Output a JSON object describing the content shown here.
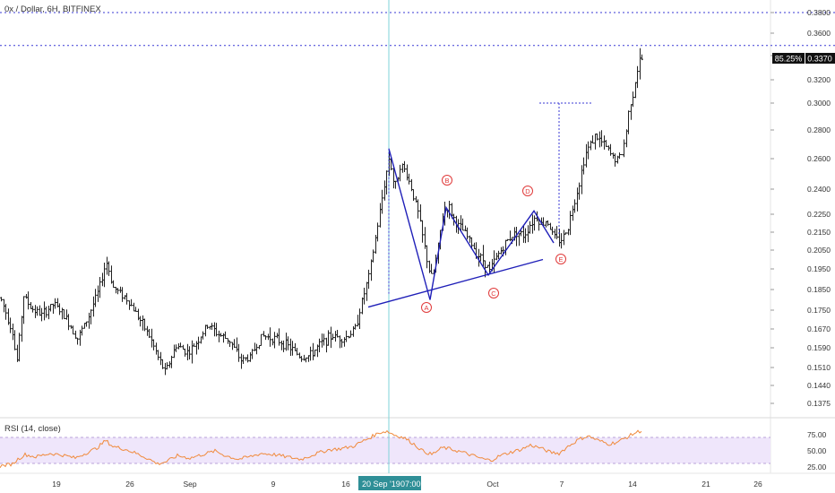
{
  "symbol_title": "0x / Dollar, 6H, BITFINEX",
  "colors": {
    "candle": "#222222",
    "pattern": "#1f1fb8",
    "label": "#e03a3a",
    "dotted": "#3a3ad6",
    "crosshair": "#7fd3d8",
    "rsi_line": "#f08a3c",
    "rsi_band": "#efe6fb",
    "rsi_band_edge": "#b8a3d9",
    "price_label_bg": "#111111",
    "crosshair_label_bg": "#2f8f97"
  },
  "price_axis": {
    "min": 0.135,
    "max": 0.39,
    "ticks": [
      "0.3800",
      "0.3600",
      "0.3400",
      "0.3200",
      "0.3000",
      "0.2800",
      "0.2600",
      "0.2400",
      "0.2250",
      "0.2150",
      "0.2050",
      "0.1950",
      "0.1850",
      "0.1750",
      "0.1670",
      "0.1590",
      "0.1510",
      "0.1440",
      "0.1375"
    ],
    "last_percent": "85.25%",
    "last_price": "0.3370"
  },
  "time_axis": {
    "labels": [
      "19",
      "26",
      "Sep",
      "9",
      "16",
      "Oct",
      "7",
      "14",
      "21",
      "26"
    ],
    "crosshair_date": "20 Sep '19",
    "crosshair_time": "07:00"
  },
  "rsi": {
    "title": "RSI (14, close)",
    "ticks": [
      "75.00",
      "50.00",
      "25.00"
    ],
    "upper": 70,
    "lower": 30
  },
  "wave_labels": [
    "A",
    "B",
    "C",
    "D",
    "E"
  ],
  "levels": {
    "top_dotted": 0.38,
    "second_dotted": 0.349,
    "target": 0.3
  },
  "chart_data": {
    "type": "candlestick",
    "title": "0x / Dollar, 6H, BITFINEX",
    "interval": "6H",
    "ylim": [
      0.135,
      0.39
    ],
    "price_path": [
      [
        0,
        0.181
      ],
      [
        14,
        0.165
      ],
      [
        18,
        0.152
      ],
      [
        26,
        0.182
      ],
      [
        34,
        0.176
      ],
      [
        46,
        0.173
      ],
      [
        60,
        0.178
      ],
      [
        74,
        0.171
      ],
      [
        86,
        0.163
      ],
      [
        98,
        0.172
      ],
      [
        110,
        0.185
      ],
      [
        118,
        0.199
      ],
      [
        126,
        0.186
      ],
      [
        140,
        0.181
      ],
      [
        154,
        0.172
      ],
      [
        166,
        0.164
      ],
      [
        176,
        0.155
      ],
      [
        184,
        0.149
      ],
      [
        196,
        0.16
      ],
      [
        210,
        0.157
      ],
      [
        220,
        0.162
      ],
      [
        232,
        0.169
      ],
      [
        242,
        0.165
      ],
      [
        256,
        0.162
      ],
      [
        268,
        0.154
      ],
      [
        278,
        0.155
      ],
      [
        292,
        0.164
      ],
      [
        306,
        0.163
      ],
      [
        320,
        0.16
      ],
      [
        336,
        0.155
      ],
      [
        346,
        0.156
      ],
      [
        358,
        0.161
      ],
      [
        370,
        0.164
      ],
      [
        384,
        0.163
      ],
      [
        396,
        0.167
      ],
      [
        404,
        0.18
      ],
      [
        412,
        0.193
      ],
      [
        418,
        0.21
      ],
      [
        424,
        0.228
      ],
      [
        430,
        0.248
      ],
      [
        434,
        0.262
      ],
      [
        440,
        0.24
      ],
      [
        446,
        0.256
      ],
      [
        452,
        0.252
      ],
      [
        460,
        0.238
      ],
      [
        466,
        0.226
      ],
      [
        472,
        0.21
      ],
      [
        478,
        0.195
      ],
      [
        482,
        0.19
      ],
      [
        488,
        0.205
      ],
      [
        494,
        0.226
      ],
      [
        500,
        0.23
      ],
      [
        508,
        0.22
      ],
      [
        516,
        0.216
      ],
      [
        524,
        0.21
      ],
      [
        532,
        0.203
      ],
      [
        540,
        0.199
      ],
      [
        546,
        0.194
      ],
      [
        552,
        0.2
      ],
      [
        560,
        0.206
      ],
      [
        568,
        0.212
      ],
      [
        576,
        0.215
      ],
      [
        584,
        0.213
      ],
      [
        592,
        0.22
      ],
      [
        598,
        0.224
      ],
      [
        604,
        0.219
      ],
      [
        610,
        0.222
      ],
      [
        616,
        0.214
      ],
      [
        622,
        0.21
      ],
      [
        628,
        0.212
      ],
      [
        634,
        0.219
      ],
      [
        640,
        0.232
      ],
      [
        646,
        0.244
      ],
      [
        652,
        0.262
      ],
      [
        658,
        0.27
      ],
      [
        664,
        0.276
      ],
      [
        670,
        0.272
      ],
      [
        676,
        0.268
      ],
      [
        682,
        0.262
      ],
      [
        688,
        0.259
      ],
      [
        694,
        0.264
      ],
      [
        698,
        0.277
      ],
      [
        702,
        0.298
      ],
      [
        706,
        0.308
      ],
      [
        710,
        0.325
      ],
      [
        714,
        0.337
      ]
    ],
    "rsi_path": [
      [
        0,
        26
      ],
      [
        14,
        30
      ],
      [
        20,
        38
      ],
      [
        28,
        46
      ],
      [
        40,
        42
      ],
      [
        56,
        48
      ],
      [
        70,
        45
      ],
      [
        84,
        40
      ],
      [
        98,
        50
      ],
      [
        108,
        57
      ],
      [
        118,
        70
      ],
      [
        126,
        60
      ],
      [
        140,
        55
      ],
      [
        152,
        48
      ],
      [
        164,
        40
      ],
      [
        176,
        30
      ],
      [
        186,
        34
      ],
      [
        198,
        44
      ],
      [
        212,
        40
      ],
      [
        226,
        46
      ],
      [
        240,
        52
      ],
      [
        252,
        44
      ],
      [
        266,
        38
      ],
      [
        278,
        42
      ],
      [
        292,
        48
      ],
      [
        306,
        46
      ],
      [
        320,
        42
      ],
      [
        336,
        38
      ],
      [
        350,
        46
      ],
      [
        366,
        54
      ],
      [
        380,
        56
      ],
      [
        394,
        60
      ],
      [
        404,
        68
      ],
      [
        414,
        76
      ],
      [
        424,
        84
      ],
      [
        432,
        86
      ],
      [
        440,
        80
      ],
      [
        452,
        74
      ],
      [
        462,
        64
      ],
      [
        472,
        52
      ],
      [
        482,
        46
      ],
      [
        494,
        58
      ],
      [
        504,
        55
      ],
      [
        516,
        50
      ],
      [
        528,
        44
      ],
      [
        540,
        38
      ],
      [
        548,
        36
      ],
      [
        558,
        44
      ],
      [
        570,
        50
      ],
      [
        582,
        55
      ],
      [
        592,
        62
      ],
      [
        602,
        58
      ],
      [
        614,
        50
      ],
      [
        624,
        48
      ],
      [
        634,
        60
      ],
      [
        646,
        72
      ],
      [
        656,
        78
      ],
      [
        668,
        70
      ],
      [
        680,
        64
      ],
      [
        690,
        68
      ],
      [
        700,
        76
      ],
      [
        710,
        84
      ],
      [
        716,
        87
      ]
    ],
    "wave_points": [
      {
        "label": "A",
        "price": 0.18
      },
      {
        "label": "B",
        "price": 0.229
      },
      {
        "label": "C",
        "price": 0.192
      },
      {
        "label": "D",
        "price": 0.227
      },
      {
        "label": "E",
        "price": 0.209
      }
    ],
    "pattern_start_price": 0.267
  }
}
